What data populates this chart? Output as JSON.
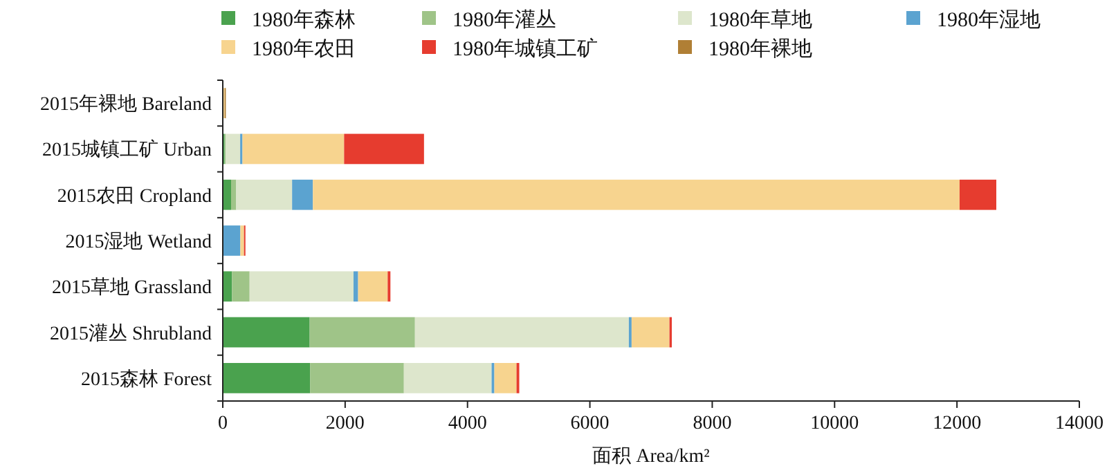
{
  "chart_data": {
    "type": "bar",
    "orientation": "horizontal",
    "stacked": true,
    "categories": [
      "2015年裸地 Bareland",
      "2015城镇工矿 Urban",
      "2015农田 Cropland",
      "2015湿地 Wetland",
      "2015草地 Grassland",
      "2015灌丛 Shrubland",
      "2015森林 Forest"
    ],
    "series": [
      {
        "name": "1980年森林",
        "color": "#4aa24e",
        "values": [
          0,
          30,
          136,
          0,
          151,
          1420,
          1427
        ]
      },
      {
        "name": "1980年灌丛",
        "color": "#9fc488",
        "values": [
          0,
          20,
          83,
          0,
          287,
          1721,
          1533
        ]
      },
      {
        "name": "1980年草地",
        "color": "#dde6cc",
        "values": [
          10,
          234,
          914,
          0,
          1699,
          3496,
          1434
        ]
      },
      {
        "name": "1980年湿地",
        "color": "#5ba3d0",
        "values": [
          0,
          38,
          340,
          287,
          75,
          45,
          45
        ]
      },
      {
        "name": "1980年农田",
        "color": "#f7d48f",
        "values": [
          20,
          1661,
          10570,
          60,
          483,
          619,
          362
        ]
      },
      {
        "name": "1980年城镇工矿",
        "color": "#e63c2f",
        "values": [
          0,
          1306,
          600,
          23,
          45,
          38,
          45
        ]
      },
      {
        "name": "1980年裸地",
        "color": "#b07f35",
        "values": [
          20,
          0,
          0,
          0,
          0,
          0,
          0
        ]
      }
    ],
    "xlim": [
      0,
      14000
    ],
    "xticks": [
      0,
      2000,
      4000,
      6000,
      8000,
      10000,
      12000,
      14000
    ],
    "xlabel": "面积 Area/km²",
    "legend": "top",
    "grid": false
  }
}
